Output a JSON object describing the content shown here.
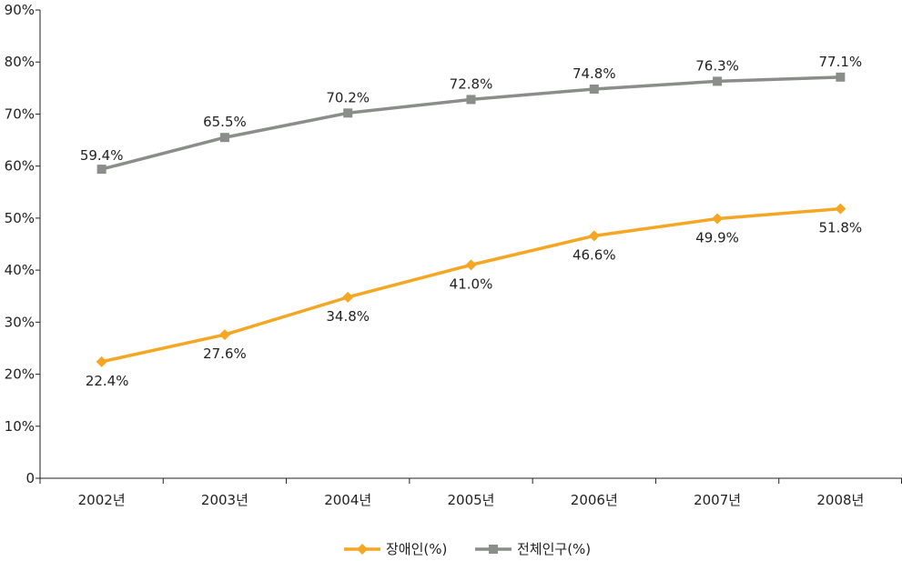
{
  "chart_data": {
    "type": "line",
    "categories": [
      "2002년",
      "2003년",
      "2004년",
      "2005년",
      "2006년",
      "2007년",
      "2008년"
    ],
    "y_ticks": [
      "0",
      "10%",
      "20%",
      "30%",
      "40%",
      "50%",
      "60%",
      "70%",
      "80%",
      "90%"
    ],
    "ylim": [
      0,
      90
    ],
    "grid": false,
    "legend_position": "bottom",
    "series": [
      {
        "name": "장애인(%)",
        "color": "#f5a623",
        "marker": "diamond",
        "values": [
          22.4,
          27.6,
          34.8,
          41.0,
          46.6,
          49.9,
          51.8
        ],
        "labels": [
          "22.4%",
          "27.6%",
          "34.8%",
          "41.0%",
          "46.6%",
          "49.9%",
          "51.8%"
        ]
      },
      {
        "name": "전체인구(%)",
        "color": "#8a8d8a",
        "marker": "square",
        "values": [
          59.4,
          65.5,
          70.2,
          72.8,
          74.8,
          76.3,
          77.1
        ],
        "labels": [
          "59.4%",
          "65.5%",
          "70.2%",
          "72.8%",
          "74.8%",
          "76.3%",
          "77.1%"
        ]
      }
    ]
  }
}
